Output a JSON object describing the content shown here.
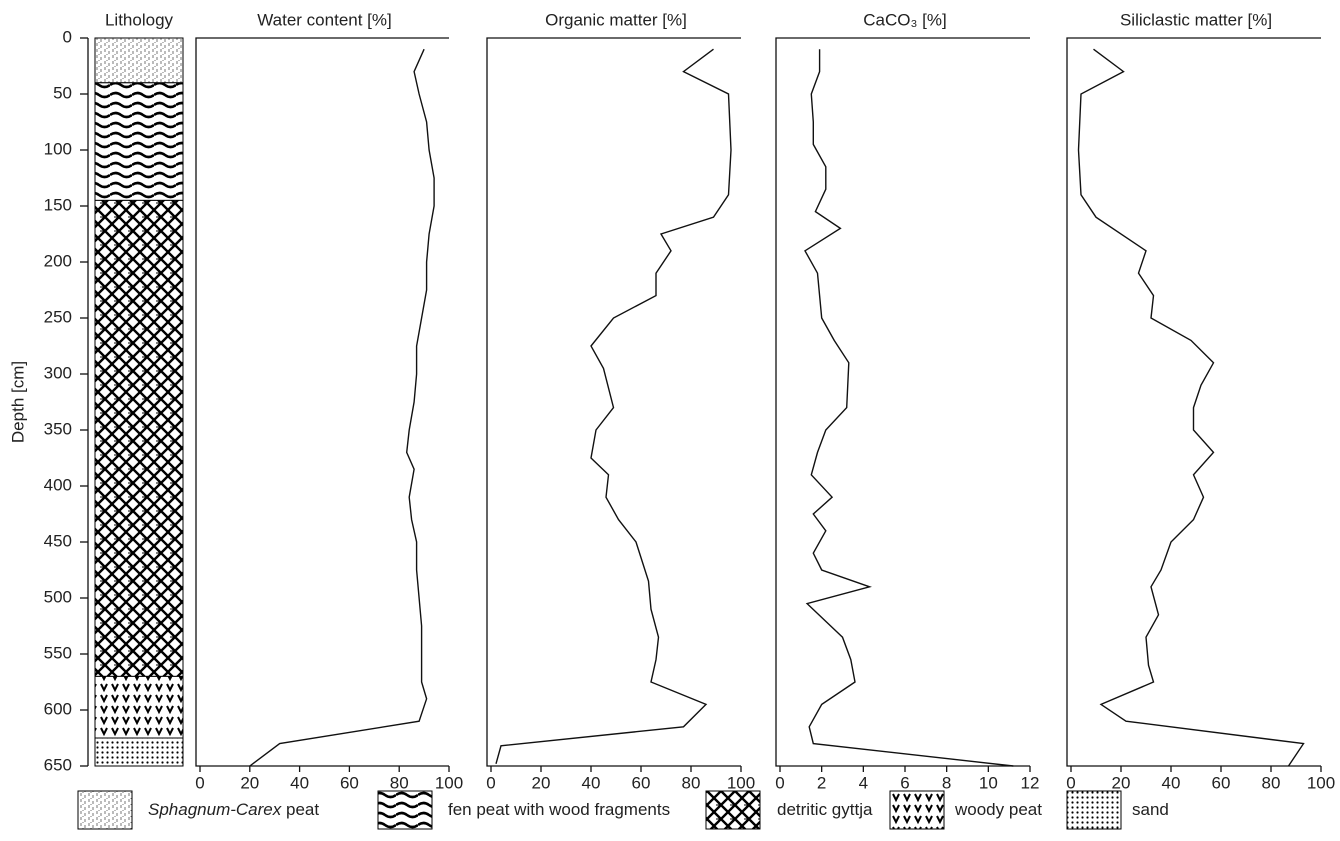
{
  "chart_data": [
    {
      "type": "lithology",
      "title": "Lithology",
      "ylabel": "Depth [cm]",
      "ylim": [
        0,
        650
      ],
      "yticks": [
        0,
        50,
        100,
        150,
        200,
        250,
        300,
        350,
        400,
        450,
        500,
        550,
        600,
        650
      ],
      "layers": [
        {
          "taxon": "Sphagnum-Carex",
          "name": "peat",
          "top": 0,
          "bottom": 40
        },
        {
          "name": "fen peat with wood fragments",
          "top": 40,
          "bottom": 145
        },
        {
          "name": "detritic gyttja",
          "top": 145,
          "bottom": 570
        },
        {
          "name": "woody peat",
          "top": 570,
          "bottom": 625
        },
        {
          "name": "sand",
          "top": 625,
          "bottom": 650
        }
      ]
    },
    {
      "type": "line",
      "title": "Water content  [%]",
      "color": "#111",
      "xlim": [
        0,
        100
      ],
      "xticks": [
        0,
        20,
        40,
        60,
        80,
        100
      ],
      "depth": [
        10,
        30,
        50,
        75,
        100,
        125,
        150,
        175,
        200,
        225,
        250,
        275,
        300,
        325,
        350,
        370,
        385,
        410,
        430,
        450,
        475,
        500,
        525,
        550,
        575,
        590,
        610,
        630,
        650
      ],
      "values": [
        90,
        86,
        88,
        91,
        92,
        94,
        94,
        92,
        91,
        91,
        89,
        87,
        87,
        86,
        84,
        83,
        86,
        84,
        85,
        87,
        87,
        88,
        89,
        89,
        89,
        91,
        88,
        32,
        20
      ]
    },
    {
      "type": "line",
      "title": "Organic matter [%]",
      "color": "#111",
      "xlim": [
        0,
        100
      ],
      "xticks": [
        0,
        20,
        40,
        60,
        80,
        100
      ],
      "depth": [
        10,
        30,
        50,
        100,
        140,
        160,
        175,
        190,
        210,
        230,
        250,
        275,
        295,
        330,
        350,
        375,
        390,
        410,
        430,
        450,
        485,
        510,
        535,
        555,
        575,
        595,
        615,
        632,
        648
      ],
      "values": [
        89,
        77,
        95,
        96,
        95,
        89,
        68,
        72,
        66,
        66,
        49,
        40,
        45,
        49,
        42,
        40,
        47,
        46,
        51,
        58,
        63,
        64,
        67,
        66,
        64,
        86,
        77,
        4,
        2
      ]
    },
    {
      "type": "line",
      "title": "CaCO₃  [%]",
      "color": "#111",
      "xlim": [
        0,
        12
      ],
      "xticks": [
        0,
        2,
        4,
        6,
        8,
        10,
        12
      ],
      "depth": [
        10,
        30,
        50,
        75,
        95,
        115,
        135,
        155,
        170,
        190,
        210,
        230,
        250,
        270,
        290,
        330,
        350,
        370,
        390,
        410,
        425,
        440,
        460,
        475,
        490,
        505,
        535,
        555,
        575,
        595,
        615,
        630,
        650
      ],
      "values": [
        1.9,
        1.9,
        1.5,
        1.6,
        1.6,
        2.2,
        2.2,
        1.7,
        2.9,
        1.2,
        1.8,
        1.9,
        2.0,
        2.6,
        3.3,
        3.2,
        2.2,
        1.8,
        1.5,
        2.5,
        1.6,
        2.2,
        1.6,
        2.0,
        4.3,
        1.3,
        3.0,
        3.4,
        3.6,
        2.0,
        1.4,
        1.6,
        11.2
      ]
    },
    {
      "type": "line",
      "title": "Siliclastic matter [%]",
      "color": "#111",
      "xlim": [
        0,
        100
      ],
      "xticks": [
        0,
        20,
        40,
        60,
        80,
        100
      ],
      "depth": [
        10,
        30,
        50,
        100,
        140,
        160,
        190,
        210,
        230,
        250,
        270,
        290,
        310,
        330,
        350,
        370,
        390,
        410,
        430,
        450,
        475,
        490,
        515,
        535,
        560,
        575,
        595,
        610,
        630,
        650
      ],
      "values": [
        9,
        21,
        4,
        3,
        4,
        10,
        30,
        27,
        33,
        32,
        48,
        57,
        52,
        49,
        49,
        57,
        49,
        53,
        49,
        40,
        36,
        32,
        35,
        30,
        31,
        33,
        12,
        22,
        93,
        87
      ]
    }
  ]
}
